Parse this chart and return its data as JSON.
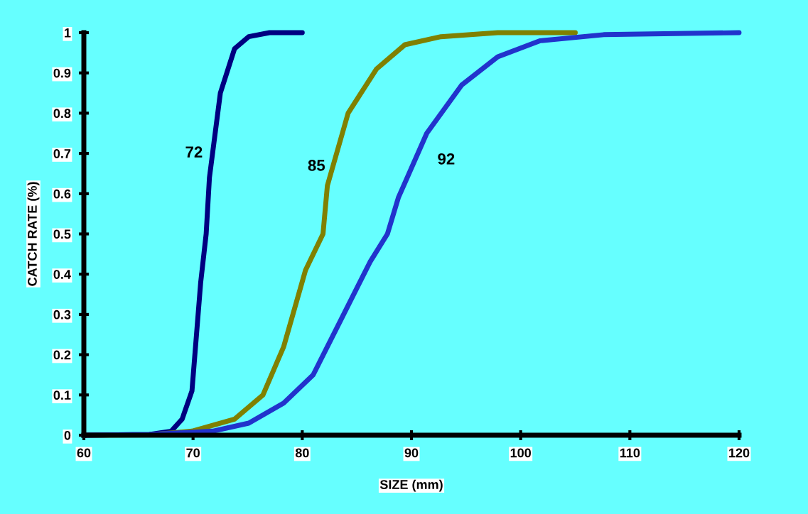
{
  "chart_data": {
    "type": "line",
    "xlabel": "SIZE (mm)",
    "ylabel": "CATCH RATE (%)",
    "xlim": [
      60,
      120
    ],
    "xticks": [
      60,
      70,
      80,
      90,
      100,
      110,
      120
    ],
    "ylim": [
      0,
      1
    ],
    "yticks": [
      0,
      0.1,
      0.2,
      0.3,
      0.4,
      0.5,
      0.6,
      0.7,
      0.8,
      0.9,
      1
    ],
    "grid": false,
    "legend": false,
    "line_style": "solid",
    "marker": "none",
    "series": [
      {
        "color": "#000080",
        "x": [
          60,
          66,
          68,
          69,
          69.9,
          70.7,
          71.2,
          71.5,
          72.5,
          73.8,
          75.1,
          77,
          80
        ],
        "values": [
          0,
          0.002,
          0.01,
          0.04,
          0.11,
          0.38,
          0.5,
          0.64,
          0.85,
          0.96,
          0.99,
          1,
          1
        ]
      },
      {
        "color": "#808000",
        "x": [
          60,
          66,
          69.9,
          73.8,
          76.4,
          78.3,
          80.3,
          81.9,
          82.3,
          84.2,
          86.8,
          89.4,
          92.7,
          97.9,
          105
        ],
        "values": [
          0,
          0.001,
          0.01,
          0.04,
          0.1,
          0.22,
          0.41,
          0.5,
          0.62,
          0.8,
          0.91,
          0.97,
          0.99,
          1,
          1
        ]
      },
      {
        "color": "#2233cc",
        "x": [
          60,
          66,
          71.8,
          75.1,
          78.3,
          81,
          83.6,
          86.2,
          87.8,
          88.8,
          91.4,
          94.6,
          97.9,
          101.8,
          107.6,
          120
        ],
        "values": [
          0,
          0.002,
          0.01,
          0.03,
          0.08,
          0.15,
          0.29,
          0.43,
          0.5,
          0.59,
          0.75,
          0.87,
          0.94,
          0.98,
          0.995,
          1
        ]
      }
    ],
    "annotations": [
      "72",
      "85",
      "92"
    ]
  }
}
